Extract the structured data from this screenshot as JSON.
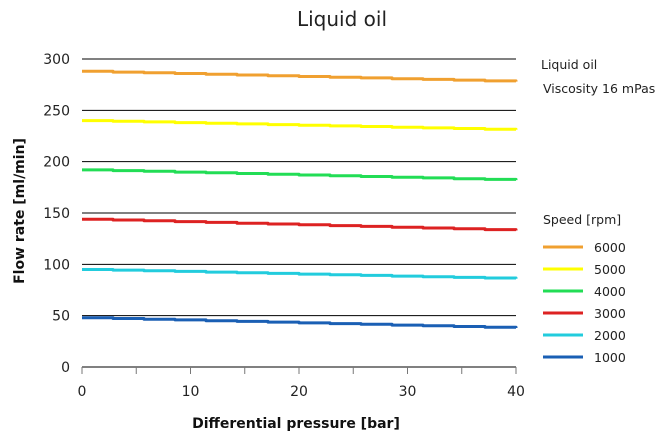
{
  "chart_data": {
    "type": "line",
    "title": "Liquid oil",
    "xlabel": "Differential pressure [bar]",
    "ylabel": "Flow rate [ml/min]",
    "xlim": [
      0,
      40
    ],
    "ylim": [
      0,
      300
    ],
    "xticks": [
      0,
      10,
      20,
      30,
      40
    ],
    "yticks": [
      0,
      50,
      100,
      150,
      200,
      250,
      300
    ],
    "grid": "horizontal",
    "notes": [
      "Liquid oil",
      "Viscosity 16 mPas"
    ],
    "legend_title": "Speed [rpm]",
    "legend_position": "right",
    "x": [
      0,
      40
    ],
    "series": [
      {
        "name": "6000",
        "color": "#f0a030",
        "values": [
          288,
          278
        ]
      },
      {
        "name": "5000",
        "color": "#ffff00",
        "values": [
          240,
          231
        ]
      },
      {
        "name": "4000",
        "color": "#22dd55",
        "values": [
          192,
          182
        ]
      },
      {
        "name": "3000",
        "color": "#dd2222",
        "values": [
          144,
          133
        ]
      },
      {
        "name": "2000",
        "color": "#22ccdd",
        "values": [
          95,
          86
        ]
      },
      {
        "name": "1000",
        "color": "#1a5fb4",
        "values": [
          48,
          38
        ]
      }
    ]
  }
}
